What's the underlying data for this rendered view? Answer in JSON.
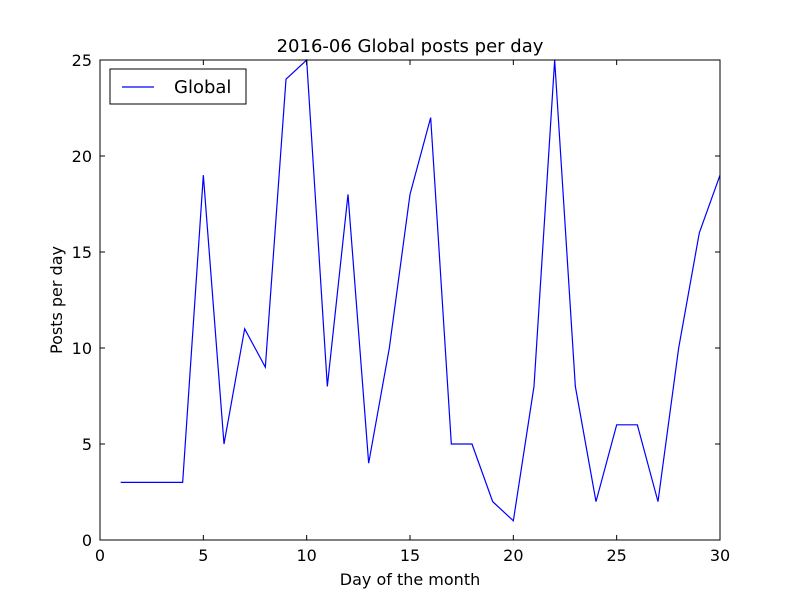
{
  "chart_data": {
    "type": "line",
    "title": "2016-06 Global posts per day",
    "xlabel": "Day of the month",
    "ylabel": "Posts per day",
    "xlim": [
      0,
      30
    ],
    "ylim": [
      0,
      25
    ],
    "xticks": [
      0,
      5,
      10,
      15,
      20,
      25,
      30
    ],
    "yticks": [
      0,
      5,
      10,
      15,
      20,
      25
    ],
    "grid": false,
    "legend_position": "top-left",
    "x": [
      1,
      2,
      3,
      4,
      5,
      6,
      7,
      8,
      9,
      10,
      11,
      12,
      13,
      14,
      15,
      16,
      17,
      18,
      19,
      20,
      21,
      22,
      23,
      24,
      25,
      26,
      27,
      28,
      29,
      30
    ],
    "series": [
      {
        "name": "Global",
        "color": "#0000ff",
        "values": [
          3,
          3,
          3,
          3,
          19,
          5,
          11,
          9,
          24,
          25,
          8,
          18,
          4,
          10,
          18,
          22,
          5,
          5,
          2,
          1,
          8,
          25,
          8,
          2,
          6,
          6,
          2,
          10,
          16,
          19
        ]
      }
    ]
  }
}
